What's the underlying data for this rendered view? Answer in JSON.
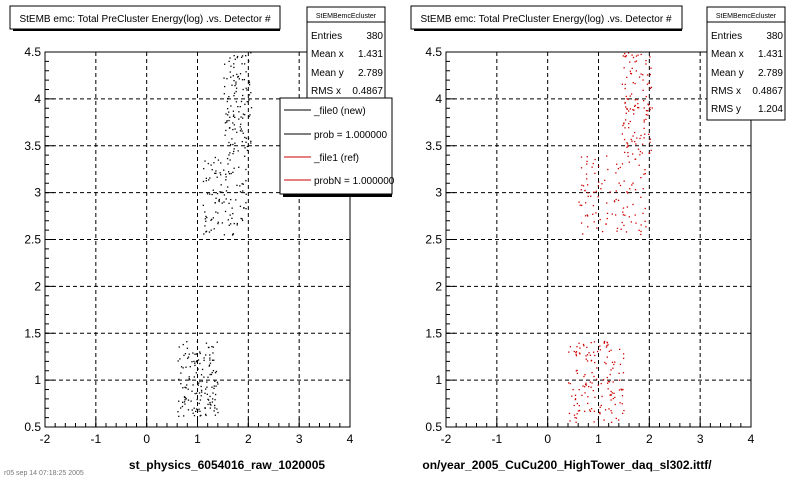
{
  "chart_data": [
    {
      "type": "scatter",
      "title": "StEMB emc: Total PreCluster Energy(log) .vs. Detector #",
      "xlabel": "st_physics_6054016_raw_1020005",
      "ylabel": "",
      "xlim": [
        -2,
        4
      ],
      "ylim": [
        0.5,
        4.5
      ],
      "x_ticks": [
        "-2",
        "-1",
        "0",
        "1",
        "2",
        "3",
        "4"
      ],
      "y_ticks": [
        "0.5",
        "1",
        "1.5",
        "2",
        "2.5",
        "3",
        "3.5",
        "4",
        "4.5"
      ],
      "grid": true,
      "color": "#000000",
      "clusters": [
        {
          "x": [
            0.6,
            1.4
          ],
          "y": [
            0.62,
            1.42
          ],
          "count": 150
        },
        {
          "x": [
            1.1,
            1.95
          ],
          "y": [
            2.55,
            3.4
          ],
          "count": 110
        },
        {
          "x": [
            1.5,
            2.05
          ],
          "y": [
            3.4,
            4.5
          ],
          "count": 120
        }
      ],
      "stats": {
        "header": "StEMBemcEcluster",
        "rows": [
          {
            "label": "Entries",
            "value": "380"
          },
          {
            "label": "Mean x",
            "value": "1.431"
          },
          {
            "label": "Mean y",
            "value": "2.789"
          },
          {
            "label": "RMS x",
            "value": "0.4867"
          }
        ]
      },
      "legend": [
        {
          "label": "_file0 (new)",
          "color": "#000000"
        },
        {
          "label": "prob = 1.000000",
          "color": "#000000"
        },
        {
          "label": "_file1 (ref)",
          "color": "#cc0000"
        },
        {
          "label": "probN = 1.000000",
          "color": "#cc0000"
        }
      ]
    },
    {
      "type": "scatter",
      "title": "StEMB emc: Total PreCluster Energy(log) .vs. Detector #",
      "xlabel": "on/year_2005_CuCu200_HighTower_daq_sl302.ittf/",
      "ylabel": "",
      "xlim": [
        -2,
        4
      ],
      "ylim": [
        0.5,
        4.5
      ],
      "x_ticks": [
        "-2",
        "-1",
        "0",
        "1",
        "2",
        "3",
        "4"
      ],
      "y_ticks": [
        "0.5",
        "1",
        "1.5",
        "2",
        "2.5",
        "3",
        "3.5",
        "4",
        "4.5"
      ],
      "grid": true,
      "color": "#cc0000",
      "clusters": [
        {
          "x": [
            0.4,
            1.5
          ],
          "y": [
            0.55,
            1.42
          ],
          "count": 150
        },
        {
          "x": [
            0.6,
            1.95
          ],
          "y": [
            2.55,
            3.4
          ],
          "count": 110
        },
        {
          "x": [
            1.45,
            2.05
          ],
          "y": [
            3.4,
            4.5
          ],
          "count": 120
        }
      ],
      "stats": {
        "header": "StEMBemcEcluster",
        "rows": [
          {
            "label": "Entries",
            "value": "380"
          },
          {
            "label": "Mean x",
            "value": "1.431"
          },
          {
            "label": "Mean y",
            "value": "2.789"
          },
          {
            "label": "RMS x",
            "value": "0.4867"
          },
          {
            "label": "RMS y",
            "value": "1.204"
          }
        ]
      }
    }
  ],
  "footer_text": "r05 sep 14 07:18:25 2005"
}
